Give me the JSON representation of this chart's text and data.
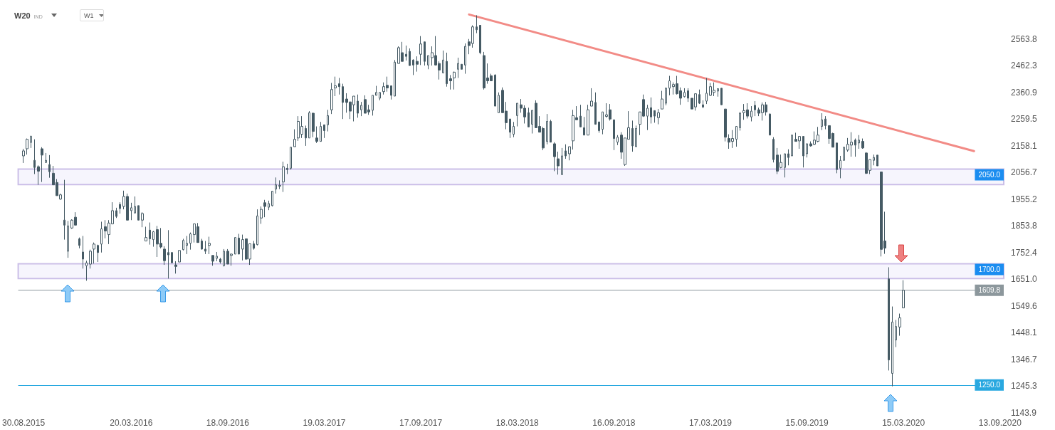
{
  "chart_data": {
    "type": "candlestick",
    "title": "W20",
    "subtitle": "IND",
    "annotations": [
      "W1"
    ],
    "xlim": [
      "2015-08-20",
      "2020-09-20"
    ],
    "xticks": [
      {
        "value": "2015-08-30",
        "label": "30.08.2015"
      },
      {
        "value": "2016-03-20",
        "label": "20.03.2016"
      },
      {
        "value": "2016-09-18",
        "label": "18.09.2016"
      },
      {
        "value": "2017-03-19",
        "label": "19.03.2017"
      },
      {
        "value": "2017-09-17",
        "label": "17.09.2017"
      },
      {
        "value": "2018-03-18",
        "label": "18.03.2018"
      },
      {
        "value": "2018-09-16",
        "label": "16.09.2018"
      },
      {
        "value": "2019-03-17",
        "label": "17.03.2019"
      },
      {
        "value": "2019-09-15",
        "label": "15.09.2019"
      },
      {
        "value": "2020-03-15",
        "label": "15.03.2020"
      },
      {
        "value": "2020-09-13",
        "label": "13.09.2020"
      }
    ],
    "ylim": [
      1143.9,
      2712
    ],
    "yticks": [
      1143.9,
      1245.3,
      1346.7,
      1448.1,
      1549.6,
      {
        "value": 1651,
        "label": "1651.0"
      },
      1752.4,
      1853.8,
      1955.2,
      2056.7,
      2158.1,
      2259.5,
      2360.9,
      2462.3,
      2563.8
    ],
    "grid": false,
    "bands": [
      {
        "axis": "y",
        "from": 2011,
        "to": 2070,
        "label": "2050.0",
        "color": "#cbbfe8"
      },
      {
        "axis": "y",
        "from": 1654,
        "to": 1710,
        "label": "1700.0",
        "color": "#cbbfe8"
      }
    ],
    "ref_lines": [
      {
        "axis": "y",
        "value": 1609.8,
        "label": "1609.8",
        "color": "#8c979c"
      },
      {
        "axis": "y",
        "value": 1250,
        "label": "1250.0",
        "color": "#29a8e0"
      }
    ],
    "series": [
      {
        "color": "#455a64",
        "x": [
          "2015-08-30",
          "2015-09-06",
          "2015-09-13",
          "2015-09-20",
          "2015-09-27",
          "2015-10-04",
          "2015-10-11",
          "2015-10-18",
          "2015-10-25",
          "2015-11-01",
          "2015-11-08",
          "2015-11-15",
          "2015-11-22",
          "2015-11-29",
          "2015-12-06",
          "2015-12-13",
          "2015-12-20",
          "2015-12-27",
          "2016-01-03",
          "2016-01-10",
          "2016-01-17",
          "2016-01-24",
          "2016-01-31",
          "2016-02-07",
          "2016-02-14",
          "2016-02-21",
          "2016-02-28",
          "2016-03-06",
          "2016-03-13",
          "2016-03-20",
          "2016-03-27",
          "2016-04-03",
          "2016-04-10",
          "2016-04-17",
          "2016-04-24",
          "2016-05-01",
          "2016-05-08",
          "2016-05-15",
          "2016-05-22",
          "2016-05-29",
          "2016-06-05",
          "2016-06-12",
          "2016-06-19",
          "2016-06-26",
          "2016-07-03",
          "2016-07-10",
          "2016-07-17",
          "2016-07-24",
          "2016-07-31",
          "2016-08-07",
          "2016-08-14",
          "2016-08-21",
          "2016-08-28",
          "2016-09-04",
          "2016-09-11",
          "2016-09-18",
          "2016-09-25",
          "2016-10-02",
          "2016-10-09",
          "2016-10-16",
          "2016-10-23",
          "2016-10-30",
          "2016-11-06",
          "2016-11-13",
          "2016-11-20",
          "2016-11-27",
          "2016-12-04",
          "2016-12-11",
          "2016-12-18",
          "2016-12-25",
          "2017-01-01",
          "2017-01-08",
          "2017-01-15",
          "2017-01-22",
          "2017-01-29",
          "2017-02-05",
          "2017-02-12",
          "2017-02-19",
          "2017-02-26",
          "2017-03-05",
          "2017-03-12",
          "2017-03-19",
          "2017-03-26",
          "2017-04-02",
          "2017-04-09",
          "2017-04-16",
          "2017-04-23",
          "2017-04-30",
          "2017-05-07",
          "2017-05-14",
          "2017-05-21",
          "2017-05-28",
          "2017-06-04",
          "2017-06-11",
          "2017-06-18",
          "2017-06-25",
          "2017-07-02",
          "2017-07-09",
          "2017-07-16",
          "2017-07-23",
          "2017-07-30",
          "2017-08-06",
          "2017-08-13",
          "2017-08-20",
          "2017-08-27",
          "2017-09-03",
          "2017-09-10",
          "2017-09-17",
          "2017-09-24",
          "2017-10-01",
          "2017-10-08",
          "2017-10-15",
          "2017-10-22",
          "2017-10-29",
          "2017-11-05",
          "2017-11-12",
          "2017-11-19",
          "2017-11-26",
          "2017-12-03",
          "2017-12-10",
          "2017-12-17",
          "2017-12-24",
          "2017-12-31",
          "2018-01-07",
          "2018-01-14",
          "2018-01-21",
          "2018-01-28",
          "2018-02-04",
          "2018-02-11",
          "2018-02-18",
          "2018-02-25",
          "2018-03-04",
          "2018-03-11",
          "2018-03-18",
          "2018-03-25",
          "2018-04-01",
          "2018-04-08",
          "2018-04-15",
          "2018-04-22",
          "2018-04-29",
          "2018-05-06",
          "2018-05-13",
          "2018-05-20",
          "2018-05-27",
          "2018-06-03",
          "2018-06-10",
          "2018-06-17",
          "2018-06-24",
          "2018-07-01",
          "2018-07-08",
          "2018-07-15",
          "2018-07-22",
          "2018-07-29",
          "2018-08-05",
          "2018-08-12",
          "2018-08-19",
          "2018-08-26",
          "2018-09-02",
          "2018-09-09",
          "2018-09-16",
          "2018-09-23",
          "2018-09-30",
          "2018-10-07",
          "2018-10-14",
          "2018-10-21",
          "2018-10-28",
          "2018-11-04",
          "2018-11-11",
          "2018-11-18",
          "2018-11-25",
          "2018-12-02",
          "2018-12-09",
          "2018-12-16",
          "2018-12-23",
          "2018-12-30",
          "2019-01-06",
          "2019-01-13",
          "2019-01-20",
          "2019-01-27",
          "2019-02-03",
          "2019-02-10",
          "2019-02-17",
          "2019-02-24",
          "2019-03-03",
          "2019-03-10",
          "2019-03-17",
          "2019-03-24",
          "2019-03-31",
          "2019-04-07",
          "2019-04-14",
          "2019-04-21",
          "2019-04-28",
          "2019-05-05",
          "2019-05-12",
          "2019-05-19",
          "2019-05-26",
          "2019-06-02",
          "2019-06-09",
          "2019-06-16",
          "2019-06-23",
          "2019-06-30",
          "2019-07-07",
          "2019-07-14",
          "2019-07-21",
          "2019-07-28",
          "2019-08-04",
          "2019-08-11",
          "2019-08-18",
          "2019-08-25",
          "2019-09-01",
          "2019-09-08",
          "2019-09-15",
          "2019-09-22",
          "2019-09-29",
          "2019-10-06",
          "2019-10-13",
          "2019-10-20",
          "2019-10-27",
          "2019-11-03",
          "2019-11-10",
          "2019-11-17",
          "2019-11-24",
          "2019-12-01",
          "2019-12-08",
          "2019-12-15",
          "2019-12-22",
          "2019-12-29",
          "2020-01-05",
          "2020-01-12",
          "2020-01-19",
          "2020-01-26",
          "2020-02-02",
          "2020-02-09",
          "2020-02-16",
          "2020-02-23",
          "2020-03-01",
          "2020-03-08",
          "2020-03-15"
        ],
        "ohlc": [
          [
            2120,
            2147,
            2093,
            2139
          ],
          [
            2147,
            2186,
            2125,
            2183
          ],
          [
            2171,
            2197,
            2150,
            2194
          ],
          [
            2103,
            2183,
            2051,
            2076
          ],
          [
            2079,
            2084,
            2010,
            2062
          ],
          [
            2147,
            2153,
            2021,
            2123
          ],
          [
            2095,
            2131,
            2093,
            2103
          ],
          [
            2087,
            2123,
            2037,
            2060
          ],
          [
            2054,
            2082,
            2010,
            2010
          ],
          [
            2019,
            2032,
            1969,
            1969
          ],
          [
            1956,
            1977,
            1953,
            1972
          ],
          [
            1876,
            2029,
            1802,
            1857
          ],
          [
            1758,
            1873,
            1733,
            1854
          ],
          [
            1846,
            1879,
            1843,
            1876
          ],
          [
            1887,
            1906,
            1857,
            1857
          ],
          [
            1805,
            1810,
            1769,
            1780
          ],
          [
            1755,
            1816,
            1692,
            1728
          ],
          [
            1703,
            1722,
            1646,
            1714
          ],
          [
            1709,
            1764,
            1692,
            1758
          ],
          [
            1766,
            1791,
            1711,
            1785
          ],
          [
            1780,
            1783,
            1717,
            1753
          ],
          [
            1785,
            1870,
            1753,
            1843
          ],
          [
            1851,
            1876,
            1807,
            1835
          ],
          [
            1821,
            1876,
            1785,
            1865
          ],
          [
            1862,
            1944,
            1860,
            1912
          ],
          [
            1912,
            1923,
            1884,
            1890
          ],
          [
            1936,
            1944,
            1901,
            1920
          ],
          [
            1928,
            1988,
            1917,
            1966
          ],
          [
            1966,
            1977,
            1876,
            1876
          ],
          [
            1912,
            1942,
            1876,
            1923
          ],
          [
            1903,
            1966,
            1903,
            1928
          ],
          [
            1931,
            1931,
            1876,
            1876
          ],
          [
            1876,
            1906,
            1849,
            1901
          ],
          [
            1797,
            1851,
            1797,
            1810
          ],
          [
            1838,
            1867,
            1783,
            1805
          ],
          [
            1802,
            1835,
            1775,
            1832
          ],
          [
            1840,
            1854,
            1736,
            1785
          ],
          [
            1788,
            1846,
            1769,
            1774
          ],
          [
            1766,
            1777,
            1706,
            1722
          ],
          [
            1753,
            1838,
            1654,
            1744
          ],
          [
            1753,
            1753,
            1714,
            1714
          ],
          [
            1706,
            1720,
            1673,
            1700
          ],
          [
            1717,
            1761,
            1717,
            1761
          ],
          [
            1764,
            1805,
            1761,
            1799
          ],
          [
            1780,
            1816,
            1747,
            1788
          ],
          [
            1788,
            1829,
            1764,
            1824
          ],
          [
            1821,
            1862,
            1791,
            1862
          ],
          [
            1851,
            1865,
            1791,
            1791
          ],
          [
            1797,
            1805,
            1764,
            1766
          ],
          [
            1766,
            1797,
            1747,
            1758
          ],
          [
            1780,
            1813,
            1747,
            1788
          ],
          [
            1742,
            1742,
            1703,
            1720
          ],
          [
            1731,
            1755,
            1720,
            1739
          ],
          [
            1728,
            1733,
            1711,
            1717
          ],
          [
            1703,
            1766,
            1700,
            1758
          ],
          [
            1758,
            1766,
            1709,
            1709
          ],
          [
            1742,
            1750,
            1703,
            1747
          ],
          [
            1747,
            1810,
            1747,
            1810
          ],
          [
            1808,
            1824,
            1747,
            1747
          ],
          [
            1766,
            1821,
            1723,
            1802
          ],
          [
            1805,
            1805,
            1725,
            1728
          ],
          [
            1728,
            1786,
            1706,
            1786
          ],
          [
            1786,
            1797,
            1764,
            1769
          ],
          [
            1783,
            1917,
            1780,
            1892
          ],
          [
            1884,
            1928,
            1862,
            1917
          ],
          [
            1942,
            1953,
            1887,
            1928
          ],
          [
            1925,
            1950,
            1914,
            1939
          ],
          [
            1931,
            1986,
            1928,
            1986
          ],
          [
            1994,
            2038,
            1977,
            2010
          ],
          [
            2005,
            2027,
            1994,
            2008
          ],
          [
            2021,
            2098,
            1983,
            2079
          ],
          [
            2073,
            2090,
            2051,
            2068
          ],
          [
            2073,
            2153,
            2068,
            2153
          ],
          [
            2155,
            2221,
            2155,
            2183
          ],
          [
            2188,
            2271,
            2177,
            2251
          ],
          [
            2202,
            2271,
            2188,
            2232
          ],
          [
            2224,
            2235,
            2158,
            2188
          ],
          [
            2188,
            2290,
            2188,
            2284
          ],
          [
            2282,
            2284,
            2191,
            2213
          ],
          [
            2188,
            2232,
            2169,
            2175
          ],
          [
            2175,
            2249,
            2175,
            2232
          ],
          [
            2238,
            2238,
            2188,
            2216
          ],
          [
            2238,
            2295,
            2213,
            2273
          ],
          [
            2295,
            2397,
            2279,
            2372
          ],
          [
            2378,
            2421,
            2347,
            2386
          ],
          [
            2394,
            2416,
            2353,
            2383
          ],
          [
            2383,
            2394,
            2260,
            2323
          ],
          [
            2336,
            2358,
            2284,
            2323
          ],
          [
            2325,
            2325,
            2260,
            2290
          ],
          [
            2314,
            2347,
            2251,
            2347
          ],
          [
            2328,
            2353,
            2265,
            2282
          ],
          [
            2295,
            2325,
            2271,
            2312
          ],
          [
            2334,
            2350,
            2282,
            2282
          ],
          [
            2295,
            2314,
            2276,
            2287
          ],
          [
            2293,
            2350,
            2273,
            2350
          ],
          [
            2350,
            2386,
            2350,
            2361
          ],
          [
            2339,
            2361,
            2331,
            2361
          ],
          [
            2364,
            2399,
            2353,
            2383
          ],
          [
            2388,
            2421,
            2364,
            2378
          ],
          [
            2386,
            2386,
            2334,
            2350
          ],
          [
            2347,
            2484,
            2347,
            2476
          ],
          [
            2471,
            2536,
            2471,
            2531
          ],
          [
            2512,
            2553,
            2479,
            2479
          ],
          [
            2506,
            2539,
            2482,
            2498
          ],
          [
            2517,
            2528,
            2463,
            2463
          ],
          [
            2484,
            2487,
            2427,
            2465
          ],
          [
            2479,
            2498,
            2440,
            2468
          ],
          [
            2506,
            2575,
            2465,
            2545
          ],
          [
            2553,
            2553,
            2463,
            2479
          ],
          [
            2465,
            2501,
            2449,
            2501
          ],
          [
            2493,
            2536,
            2463,
            2512
          ],
          [
            2501,
            2575,
            2463,
            2465
          ],
          [
            2471,
            2479,
            2410,
            2446
          ],
          [
            2435,
            2520,
            2435,
            2484
          ],
          [
            2479,
            2512,
            2383,
            2394
          ],
          [
            2413,
            2427,
            2372,
            2405
          ],
          [
            2416,
            2440,
            2372,
            2438
          ],
          [
            2449,
            2493,
            2416,
            2471
          ],
          [
            2468,
            2468,
            2449,
            2449
          ],
          [
            2465,
            2547,
            2432,
            2536
          ],
          [
            2553,
            2564,
            2506,
            2539
          ],
          [
            2547,
            2616,
            2531,
            2610
          ],
          [
            2610,
            2654,
            2586,
            2599
          ],
          [
            2616,
            2616,
            2506,
            2512
          ],
          [
            2501,
            2515,
            2372,
            2378
          ],
          [
            2416,
            2471,
            2394,
            2405
          ],
          [
            2424,
            2432,
            2405,
            2405
          ],
          [
            2427,
            2430,
            2309,
            2309
          ],
          [
            2284,
            2361,
            2284,
            2350
          ],
          [
            2369,
            2380,
            2284,
            2284
          ],
          [
            2290,
            2325,
            2221,
            2246
          ],
          [
            2260,
            2260,
            2188,
            2210
          ],
          [
            2202,
            2249,
            2191,
            2232
          ],
          [
            2273,
            2320,
            2232,
            2320
          ],
          [
            2314,
            2336,
            2284,
            2301
          ],
          [
            2301,
            2312,
            2243,
            2268
          ],
          [
            2284,
            2303,
            2230,
            2230
          ],
          [
            2240,
            2293,
            2205,
            2293
          ],
          [
            2320,
            2331,
            2227,
            2227
          ],
          [
            2232,
            2271,
            2210,
            2210
          ],
          [
            2224,
            2230,
            2142,
            2150
          ],
          [
            2175,
            2279,
            2164,
            2251
          ],
          [
            2251,
            2257,
            2172,
            2172
          ],
          [
            2166,
            2172,
            2062,
            2117
          ],
          [
            2109,
            2136,
            2049,
            2082
          ],
          [
            2049,
            2150,
            2049,
            2120
          ],
          [
            2139,
            2164,
            2109,
            2120
          ],
          [
            2128,
            2155,
            2103,
            2155
          ],
          [
            2177,
            2295,
            2144,
            2273
          ],
          [
            2265,
            2309,
            2257,
            2257
          ],
          [
            2271,
            2314,
            2230,
            2230
          ],
          [
            2227,
            2268,
            2199,
            2199
          ],
          [
            2199,
            2314,
            2199,
            2295
          ],
          [
            2309,
            2377,
            2309,
            2328
          ],
          [
            2323,
            2361,
            2240,
            2240
          ],
          [
            2249,
            2249,
            2208,
            2216
          ],
          [
            2221,
            2287,
            2202,
            2287
          ],
          [
            2270,
            2320,
            2265,
            2276
          ],
          [
            2295,
            2317,
            2254,
            2260
          ],
          [
            2257,
            2257,
            2142,
            2186
          ],
          [
            2172,
            2199,
            2161,
            2191
          ],
          [
            2199,
            2210,
            2109,
            2134
          ],
          [
            2087,
            2188,
            2082,
            2188
          ],
          [
            2183,
            2290,
            2183,
            2227
          ],
          [
            2224,
            2254,
            2136,
            2158
          ],
          [
            2155,
            2235,
            2155,
            2224
          ],
          [
            2240,
            2287,
            2199,
            2287
          ],
          [
            2334,
            2353,
            2268,
            2271
          ],
          [
            2271,
            2314,
            2218,
            2301
          ],
          [
            2303,
            2342,
            2243,
            2268
          ],
          [
            2292,
            2292,
            2246,
            2271
          ],
          [
            2265,
            2298,
            2240,
            2284
          ],
          [
            2298,
            2367,
            2298,
            2336
          ],
          [
            2320,
            2380,
            2312,
            2377
          ],
          [
            2377,
            2424,
            2350,
            2405
          ],
          [
            2383,
            2399,
            2353,
            2391
          ],
          [
            2394,
            2424,
            2353,
            2356
          ],
          [
            2367,
            2380,
            2314,
            2339
          ],
          [
            2345,
            2377,
            2342,
            2361
          ],
          [
            2367,
            2377,
            2325,
            2339
          ],
          [
            2339,
            2339,
            2298,
            2298
          ],
          [
            2306,
            2356,
            2292,
            2356
          ],
          [
            2353,
            2372,
            2317,
            2320
          ],
          [
            2314,
            2331,
            2301,
            2306
          ],
          [
            2328,
            2416,
            2317,
            2358
          ],
          [
            2350,
            2397,
            2347,
            2383
          ],
          [
            2361,
            2399,
            2347,
            2369
          ],
          [
            2366,
            2377,
            2345,
            2375
          ],
          [
            2377,
            2377,
            2314,
            2314
          ],
          [
            2298,
            2298,
            2175,
            2191
          ],
          [
            2186,
            2202,
            2147,
            2172
          ],
          [
            2175,
            2218,
            2150,
            2186
          ],
          [
            2183,
            2232,
            2155,
            2232
          ],
          [
            2227,
            2287,
            2216,
            2282
          ],
          [
            2284,
            2317,
            2257,
            2292
          ],
          [
            2295,
            2320,
            2262,
            2271
          ],
          [
            2268,
            2309,
            2251,
            2290
          ],
          [
            2312,
            2328,
            2271,
            2295
          ],
          [
            2295,
            2303,
            2271,
            2282
          ],
          [
            2284,
            2323,
            2254,
            2314
          ],
          [
            2314,
            2325,
            2273,
            2287
          ],
          [
            2279,
            2281,
            2199,
            2199
          ],
          [
            2183,
            2191,
            2095,
            2106
          ],
          [
            2123,
            2150,
            2051,
            2062
          ],
          [
            2076,
            2125,
            2073,
            2095
          ],
          [
            2076,
            2128,
            2038,
            2128
          ],
          [
            2128,
            2145,
            2084,
            2114
          ],
          [
            2120,
            2199,
            2120,
            2199
          ],
          [
            2183,
            2208,
            2175,
            2175
          ],
          [
            2177,
            2194,
            2147,
            2194
          ],
          [
            2194,
            2194,
            2076,
            2120
          ],
          [
            2128,
            2166,
            2114,
            2166
          ],
          [
            2166,
            2175,
            2155,
            2158
          ],
          [
            2164,
            2213,
            2161,
            2180
          ],
          [
            2175,
            2230,
            2172,
            2199
          ],
          [
            2232,
            2282,
            2218,
            2257
          ],
          [
            2260,
            2271,
            2221,
            2235
          ],
          [
            2235,
            2235,
            2166,
            2186
          ],
          [
            2205,
            2208,
            2153,
            2153
          ],
          [
            2169,
            2169,
            2054,
            2068
          ],
          [
            2073,
            2120,
            2035,
            2103
          ],
          [
            2103,
            2153,
            2103,
            2153
          ],
          [
            2142,
            2188,
            2136,
            2164
          ],
          [
            2161,
            2210,
            2117,
            2172
          ],
          [
            2180,
            2186,
            2117,
            2161
          ],
          [
            2169,
            2199,
            2147,
            2180
          ],
          [
            2175,
            2186,
            2147,
            2150
          ],
          [
            2131,
            2134,
            2051,
            2054
          ],
          [
            2065,
            2106,
            2051,
            2106
          ],
          [
            2103,
            2125,
            2084,
            2114
          ],
          [
            2123,
            2123,
            2082,
            2082
          ],
          [
            2059,
            2059,
            1738,
            1765
          ],
          [
            1797,
            1908,
            1748,
            1770
          ],
          [
            1653,
            1697,
            1305,
            1345
          ],
          [
            1294,
            1548,
            1245,
            1489
          ],
          [
            1421,
            1497,
            1394,
            1472
          ],
          [
            1470,
            1521,
            1437,
            1505
          ],
          [
            1543,
            1648,
            1543,
            1609.8
          ]
        ]
      },
      {
        "type": "line",
        "color": "#f28b86",
        "x": [
          "2017-12-17",
          "2020-07-26"
        ],
        "values": [
          2657,
          2138
        ]
      }
    ]
  }
}
